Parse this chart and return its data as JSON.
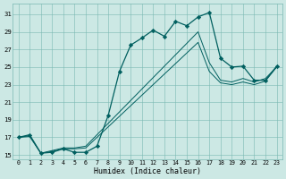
{
  "xlabel": "Humidex (Indice chaleur)",
  "bg_color": "#cce8e4",
  "line_color": "#005f5f",
  "xlim": [
    -0.5,
    23.5
  ],
  "ylim": [
    14.5,
    32.2
  ],
  "xticks": [
    0,
    1,
    2,
    3,
    4,
    5,
    6,
    7,
    8,
    9,
    10,
    11,
    12,
    13,
    14,
    15,
    16,
    17,
    18,
    19,
    20,
    21,
    22,
    23
  ],
  "yticks": [
    15,
    17,
    19,
    21,
    23,
    25,
    27,
    29,
    31
  ],
  "line1_x": [
    0,
    1,
    2,
    3,
    4,
    5,
    6,
    7,
    8,
    9,
    10,
    11,
    12,
    13,
    14,
    15,
    16,
    17,
    18,
    19,
    20,
    21,
    22,
    23
  ],
  "line1_y": [
    17.0,
    17.3,
    15.2,
    15.3,
    15.7,
    15.3,
    15.3,
    16.0,
    19.5,
    24.5,
    27.5,
    28.3,
    29.2,
    28.5,
    30.2,
    29.7,
    30.7,
    31.2,
    26.0,
    25.0,
    25.1,
    23.5,
    23.5,
    25.1
  ],
  "line2_x": [
    0,
    1,
    2,
    3,
    4,
    5,
    6,
    7,
    8,
    9,
    10,
    11,
    12,
    13,
    14,
    15,
    16,
    17,
    18,
    19,
    20,
    21,
    22,
    23
  ],
  "line2_y": [
    17.0,
    17.2,
    15.2,
    15.5,
    15.8,
    15.8,
    16.0,
    17.3,
    18.6,
    19.9,
    21.2,
    22.5,
    23.8,
    25.1,
    26.4,
    27.7,
    29.0,
    25.5,
    23.5,
    23.3,
    23.7,
    23.3,
    23.7,
    25.0
  ],
  "line3_x": [
    0,
    1,
    2,
    3,
    4,
    5,
    6,
    7,
    8,
    9,
    10,
    11,
    12,
    13,
    14,
    15,
    16,
    17,
    18,
    19,
    20,
    21,
    22,
    23
  ],
  "line3_y": [
    17.0,
    17.1,
    15.2,
    15.4,
    15.7,
    15.7,
    15.8,
    17.0,
    18.2,
    19.4,
    20.6,
    21.8,
    23.0,
    24.2,
    25.4,
    26.6,
    27.8,
    24.5,
    23.2,
    23.0,
    23.3,
    23.0,
    23.4,
    25.0
  ]
}
